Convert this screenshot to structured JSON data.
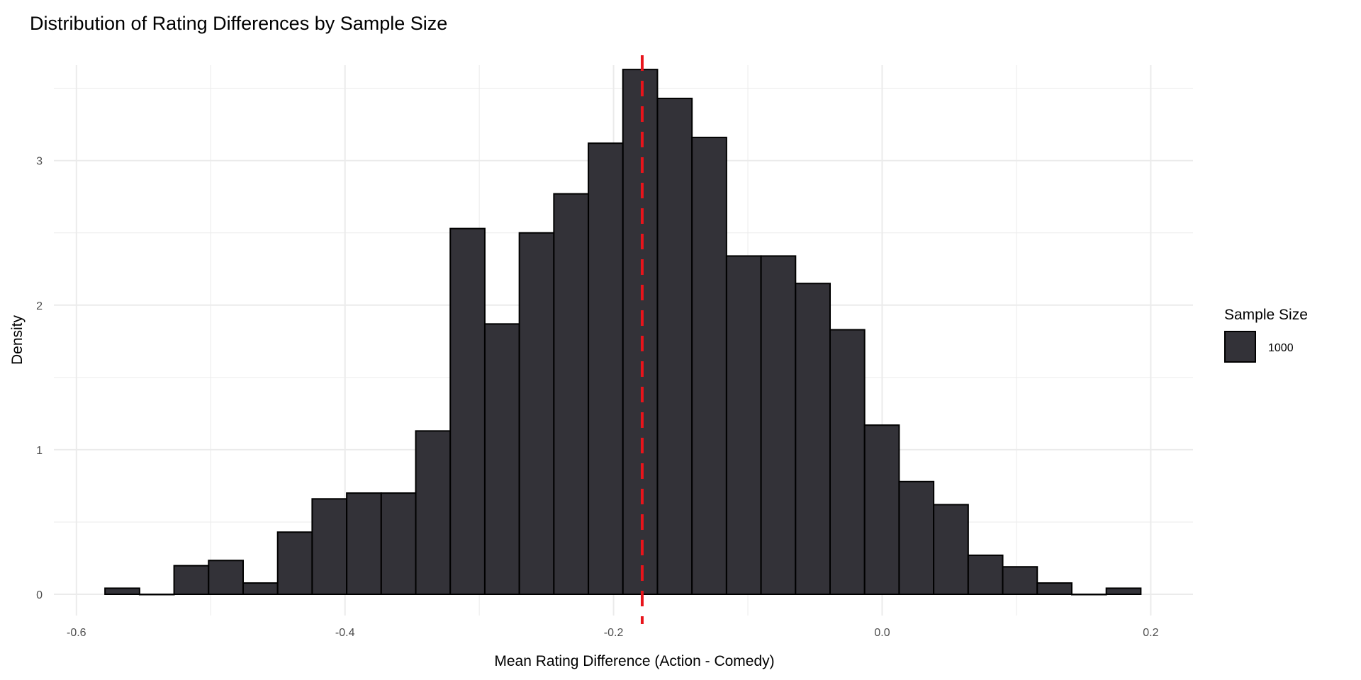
{
  "chart_data": {
    "type": "bar",
    "title": "Distribution of Rating Differences by Sample Size",
    "xlabel": "Mean Rating Difference (Action - Comedy)",
    "ylabel": "Density",
    "xlim": [
      -0.617,
      0.229
    ],
    "ylim": [
      -0.18,
      3.8
    ],
    "xticks": [
      -0.6,
      -0.4,
      -0.2,
      0.0,
      0.2
    ],
    "xtick_labels": [
      "-0.6",
      "-0.4",
      "-0.2",
      "0.0",
      "0.2"
    ],
    "yticks": [
      0,
      1,
      2,
      3
    ],
    "ytick_labels": [
      "0",
      "1",
      "2",
      "3"
    ],
    "grid": true,
    "bin_start": -0.5787,
    "bin_width": 0.02571,
    "series": [
      {
        "name": "1000",
        "color": "#333238",
        "values": [
          0.042,
          0,
          0.198,
          0.234,
          0.078,
          0.43,
          0.66,
          0.7,
          0.7,
          1.13,
          2.53,
          1.87,
          2.5,
          2.77,
          3.12,
          3.63,
          3.43,
          3.16,
          2.34,
          2.34,
          2.15,
          1.83,
          1.17,
          0.78,
          0.62,
          0.27,
          0.19,
          0.078,
          0,
          0.042
        ]
      }
    ],
    "mean_line": {
      "x": -0.1787,
      "color": "#e8141b",
      "style": "dashed"
    },
    "legend": {
      "title": "Sample Size",
      "placement": "right",
      "items": [
        "1000"
      ]
    }
  }
}
